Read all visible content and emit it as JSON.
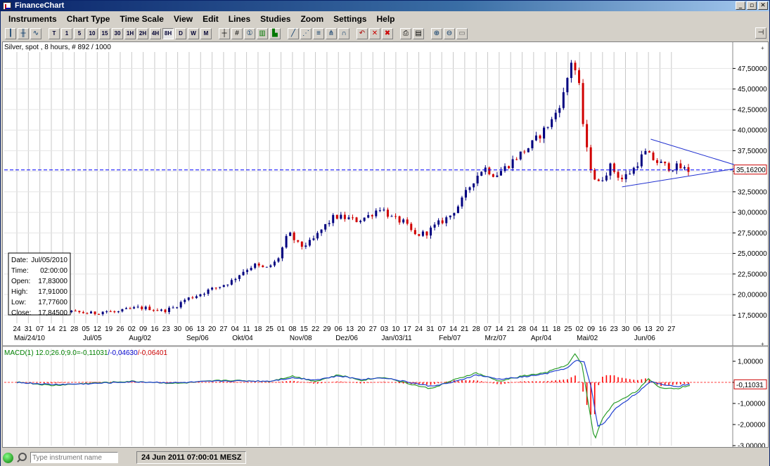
{
  "window": {
    "title": "FinanceChart"
  },
  "menu": [
    "Instruments",
    "Chart Type",
    "Time Scale",
    "View",
    "Edit",
    "Lines",
    "Studies",
    "Zoom",
    "Settings",
    "Help"
  ],
  "toolbar": {
    "timeframes": [
      "T",
      "1",
      "5",
      "10",
      "15",
      "30",
      "1H",
      "2H",
      "4H",
      "8H",
      "D",
      "W",
      "M"
    ],
    "active_timeframe": "8H"
  },
  "chart_info": "Silver, spot , 8 hours, # 892 / 1000",
  "price_axis": {
    "ticks": [
      "47,50000",
      "45,00000",
      "42,50000",
      "40,00000",
      "37,50000",
      "35,00000",
      "32,50000",
      "30,00000",
      "27,50000",
      "25,00000",
      "22,50000",
      "20,00000",
      "17,50000"
    ],
    "current_label": "35,16200"
  },
  "x_axis": {
    "days": [
      "24",
      "31",
      "07",
      "14",
      "21",
      "28",
      "05",
      "12",
      "19",
      "26",
      "02",
      "09",
      "16",
      "23",
      "30",
      "06",
      "13",
      "20",
      "27",
      "04",
      "11",
      "18",
      "25",
      "01",
      "08",
      "15",
      "22",
      "29",
      "06",
      "13",
      "20",
      "27",
      "03",
      "10",
      "17",
      "24",
      "31",
      "07",
      "14",
      "21",
      "28",
      "07",
      "14",
      "21",
      "28",
      "04",
      "11",
      "18",
      "25",
      "02",
      "09",
      "16",
      "23",
      "30",
      "06",
      "13",
      "20",
      "27"
    ],
    "months": [
      {
        "label": "Mai/24/10",
        "i": 0
      },
      {
        "label": "Jul/05",
        "i": 6
      },
      {
        "label": "Aug/02",
        "i": 10
      },
      {
        "label": "Sep/06",
        "i": 15
      },
      {
        "label": "Okt/04",
        "i": 19
      },
      {
        "label": "Nov/08",
        "i": 24
      },
      {
        "label": "Dez/06",
        "i": 28
      },
      {
        "label": "Jan/03/11",
        "i": 32
      },
      {
        "label": "Feb/07",
        "i": 37
      },
      {
        "label": "Mrz/07",
        "i": 41
      },
      {
        "label": "Apr/04",
        "i": 45
      },
      {
        "label": "Mai/02",
        "i": 49
      },
      {
        "label": "Jun/06",
        "i": 54
      }
    ]
  },
  "info_box": {
    "rows": [
      {
        "k": "Date:",
        "v": "Jul/05/2010"
      },
      {
        "k": "Time:",
        "v": "02:00:00"
      },
      {
        "k": "Open:",
        "v": "17,83000"
      },
      {
        "k": "High:",
        "v": "17,91000"
      },
      {
        "k": "Low:",
        "v": "17,77600"
      },
      {
        "k": "Close:",
        "v": "17,84500"
      }
    ]
  },
  "macd": {
    "label_prefix": "MACD(1) 12.0;26.0;9.0=",
    "label_v1": "-0,11031",
    "label_v2": "/-0,04630",
    "label_v3": "/-0,06401",
    "ticks": [
      "1,00000",
      "0,00000",
      "-1,00000",
      "-2,00000",
      "-3,00000"
    ],
    "current_label": "-0,11031"
  },
  "status": {
    "search_placeholder": "Type instrument name",
    "datetime": "24 Jun 2011 07:00:01 MESZ"
  },
  "colors": {
    "bull": "#000080",
    "bear": "#d00000",
    "macd": "#2a9d2a",
    "signal": "#2040d0",
    "hist": "#ff0000",
    "hline": "#0000ff"
  },
  "chart_data": [
    {
      "type": "candlestick",
      "title": "Silver, spot , 8 hours",
      "ylim": [
        16.5,
        49.5
      ],
      "horizontal_line": 35.162,
      "anchors_daypos_price": [
        [
          0,
          19.0
        ],
        [
          1,
          18.7
        ],
        [
          2,
          18.4
        ],
        [
          3,
          18.0
        ],
        [
          4,
          18.3
        ],
        [
          5,
          17.9
        ],
        [
          6,
          17.8
        ],
        [
          7,
          17.7
        ],
        [
          8,
          18.0
        ],
        [
          9,
          17.8
        ],
        [
          10,
          18.2
        ],
        [
          11,
          18.4
        ],
        [
          12,
          18.3
        ],
        [
          13,
          18.0
        ],
        [
          14,
          18.4
        ],
        [
          15,
          19.4
        ],
        [
          16,
          19.9
        ],
        [
          17,
          20.5
        ],
        [
          18,
          21.0
        ],
        [
          19,
          21.6
        ],
        [
          20,
          22.8
        ],
        [
          21,
          23.6
        ],
        [
          22,
          23.1
        ],
        [
          23,
          24.1
        ],
        [
          24,
          27.5
        ],
        [
          25,
          25.8
        ],
        [
          26,
          26.4
        ],
        [
          27,
          28.1
        ],
        [
          28,
          29.5
        ],
        [
          29,
          29.3
        ],
        [
          30,
          29.0
        ],
        [
          31,
          29.6
        ],
        [
          32,
          30.6
        ],
        [
          33,
          29.3
        ],
        [
          34,
          28.8
        ],
        [
          35,
          27.2
        ],
        [
          36,
          27.5
        ],
        [
          37,
          28.6
        ],
        [
          38,
          29.5
        ],
        [
          39,
          31.2
        ],
        [
          40,
          33.7
        ],
        [
          41,
          35.5
        ],
        [
          42,
          34.5
        ],
        [
          43,
          35.6
        ],
        [
          44,
          36.9
        ],
        [
          45,
          38.0
        ],
        [
          46,
          39.6
        ],
        [
          47,
          41.3
        ],
        [
          48,
          44.5
        ],
        [
          48.6,
          48.5
        ],
        [
          49.2,
          46.5
        ],
        [
          49.6,
          41.2
        ],
        [
          50,
          37.3
        ],
        [
          50.5,
          34.5
        ],
        [
          51,
          33.5
        ],
        [
          52,
          35.6
        ],
        [
          53,
          34.0
        ],
        [
          54,
          35.2
        ],
        [
          55,
          37.3
        ],
        [
          56,
          36.2
        ],
        [
          57,
          35.5
        ],
        [
          58,
          35.5
        ],
        [
          58.7,
          35.1
        ]
      ]
    },
    {
      "type": "line",
      "title": "MACD(1) 12.0;26.0;9.0",
      "ylim": [
        -3.0,
        1.6
      ],
      "series": [
        {
          "name": "MACD",
          "anchors": [
            [
              0,
              0.02
            ],
            [
              3,
              -0.15
            ],
            [
              6,
              -0.05
            ],
            [
              10,
              0.05
            ],
            [
              14,
              -0.05
            ],
            [
              18,
              0.1
            ],
            [
              22,
              0.05
            ],
            [
              24,
              0.3
            ],
            [
              26,
              0.05
            ],
            [
              28,
              0.35
            ],
            [
              30,
              0.1
            ],
            [
              32,
              0.25
            ],
            [
              34,
              -0.05
            ],
            [
              36,
              -0.3
            ],
            [
              38,
              0.1
            ],
            [
              40,
              0.45
            ],
            [
              42,
              0.05
            ],
            [
              44,
              0.3
            ],
            [
              46,
              0.45
            ],
            [
              48,
              0.85
            ],
            [
              48.6,
              1.35
            ],
            [
              49.2,
              0.85
            ],
            [
              49.8,
              -1.1
            ],
            [
              50.3,
              -2.75
            ],
            [
              51,
              -1.7
            ],
            [
              52,
              -1.0
            ],
            [
              54,
              -0.4
            ],
            [
              55,
              0.15
            ],
            [
              56,
              -0.25
            ],
            [
              57.5,
              -0.3
            ],
            [
              58.7,
              -0.11
            ]
          ]
        },
        {
          "name": "Signal",
          "anchors": [
            [
              0,
              0.0
            ],
            [
              3,
              -0.1
            ],
            [
              6,
              -0.07
            ],
            [
              10,
              0.03
            ],
            [
              14,
              -0.02
            ],
            [
              18,
              0.07
            ],
            [
              22,
              0.06
            ],
            [
              24,
              0.22
            ],
            [
              26,
              0.12
            ],
            [
              28,
              0.3
            ],
            [
              30,
              0.15
            ],
            [
              32,
              0.22
            ],
            [
              34,
              0.02
            ],
            [
              36,
              -0.18
            ],
            [
              38,
              0.0
            ],
            [
              40,
              0.35
            ],
            [
              42,
              0.15
            ],
            [
              44,
              0.25
            ],
            [
              46,
              0.4
            ],
            [
              48,
              0.7
            ],
            [
              48.7,
              1.05
            ],
            [
              49.4,
              0.95
            ],
            [
              50,
              -0.2
            ],
            [
              50.6,
              -2.1
            ],
            [
              51.2,
              -1.9
            ],
            [
              52.2,
              -1.2
            ],
            [
              54,
              -0.5
            ],
            [
              55.2,
              0.02
            ],
            [
              56.3,
              -0.1
            ],
            [
              57.5,
              -0.2
            ],
            [
              58.7,
              -0.05
            ]
          ]
        }
      ]
    }
  ]
}
